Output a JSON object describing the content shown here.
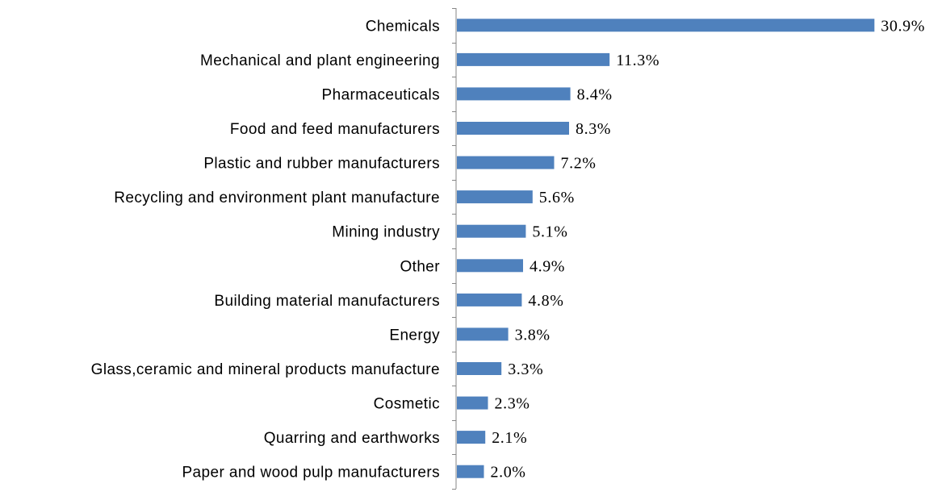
{
  "chart_data": {
    "type": "bar",
    "orientation": "horizontal",
    "title": "",
    "xlabel": "",
    "ylabel": "",
    "value_unit": "%",
    "grid": false,
    "legend": "none",
    "bar_color": "#4F81BD",
    "categories": [
      "Chemicals",
      "Mechanical and plant engineering",
      "Pharmaceuticals",
      "Food and feed manufacturers",
      "Plastic and rubber manufacturers",
      "Recycling and environment plant manufacture",
      "Mining industry",
      "Other",
      "Building material manufacturers",
      "Energy",
      "Glass,ceramic and mineral products manufacture",
      "Cosmetic",
      "Quarring and earthworks",
      "Paper and wood pulp manufacturers"
    ],
    "values": [
      30.9,
      11.3,
      8.4,
      8.3,
      7.2,
      5.6,
      5.1,
      4.9,
      4.8,
      3.8,
      3.3,
      2.3,
      2.1,
      2.0
    ],
    "data_labels": [
      "30.9%",
      "11.3%",
      "8.4%",
      "8.3%",
      "7.2%",
      "5.6%",
      "5.1%",
      "4.9%",
      "4.8%",
      "3.8%",
      "3.3%",
      "2.3%",
      "2.1%",
      "2.0%"
    ],
    "xlim": [
      0,
      31
    ]
  }
}
